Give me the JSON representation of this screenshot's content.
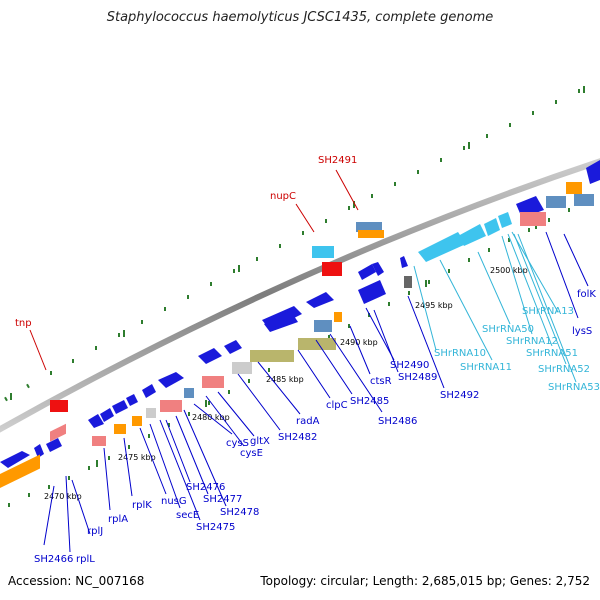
{
  "title": "Staphylococcus haemolyticus JCSC1435, complete genome",
  "footer": {
    "accession": "Accession: NC_007168",
    "topology": "Topology: circular; Length: 2,685,015 bp; Genes: 2,752"
  },
  "colors": {
    "backbone": "#8f8f8f",
    "blue_gene": "#1a1adb",
    "cyan_gene": "#3ec4ee",
    "red_gene": "#ee1111",
    "orange": "#ff9900",
    "salmon": "#f08080",
    "olive": "#b9b56c",
    "steel": "#5f8fc0",
    "green_tick": "#2e7d2e",
    "label_blue": "#0000cc",
    "label_red": "#cc0000",
    "label_cyan": "#33b5d8"
  },
  "scale_labels": [
    "2470 kbp",
    "2475 kbp",
    "2480 kbp",
    "2485 kbp",
    "2490 kbp",
    "2495 kbp",
    "2500 kbp"
  ],
  "gene_labels": {
    "tnp": "tnp",
    "nupC": "nupC",
    "SH2491": "SH2491",
    "SH2466": "SH2466",
    "rplL": "rplL",
    "rplJ": "rplJ",
    "rplA": "rplA",
    "rplK": "rplK",
    "nusG": "nusG",
    "secE": "secE",
    "SH2475": "SH2475",
    "SH2476": "SH2476",
    "SH2477": "SH2477",
    "SH2478": "SH2478",
    "cysS": "cysS",
    "cysE": "cysE",
    "gltX": "gltX",
    "SH2482": "SH2482",
    "radA": "radA",
    "clpC": "clpC",
    "SH2485": "SH2485",
    "SH2486": "SH2486",
    "ctsR": "ctsR",
    "SH2489": "SH2489",
    "SH2490": "SH2490",
    "SH2492": "SH2492",
    "SHrRNA10": "SHrRNA10",
    "SHrRNA11": "SHrRNA11",
    "SHrRNA50": "SHrRNA50",
    "SHrRNA12": "SHrRNA12",
    "SHrRNA51": "SHrRNA51",
    "SHrRNA13": "SHrRNA13",
    "SHrRNA52": "SHrRNA52",
    "SHrRNA53": "SHrRNA53",
    "lysS": "lysS",
    "folK": "folK"
  }
}
